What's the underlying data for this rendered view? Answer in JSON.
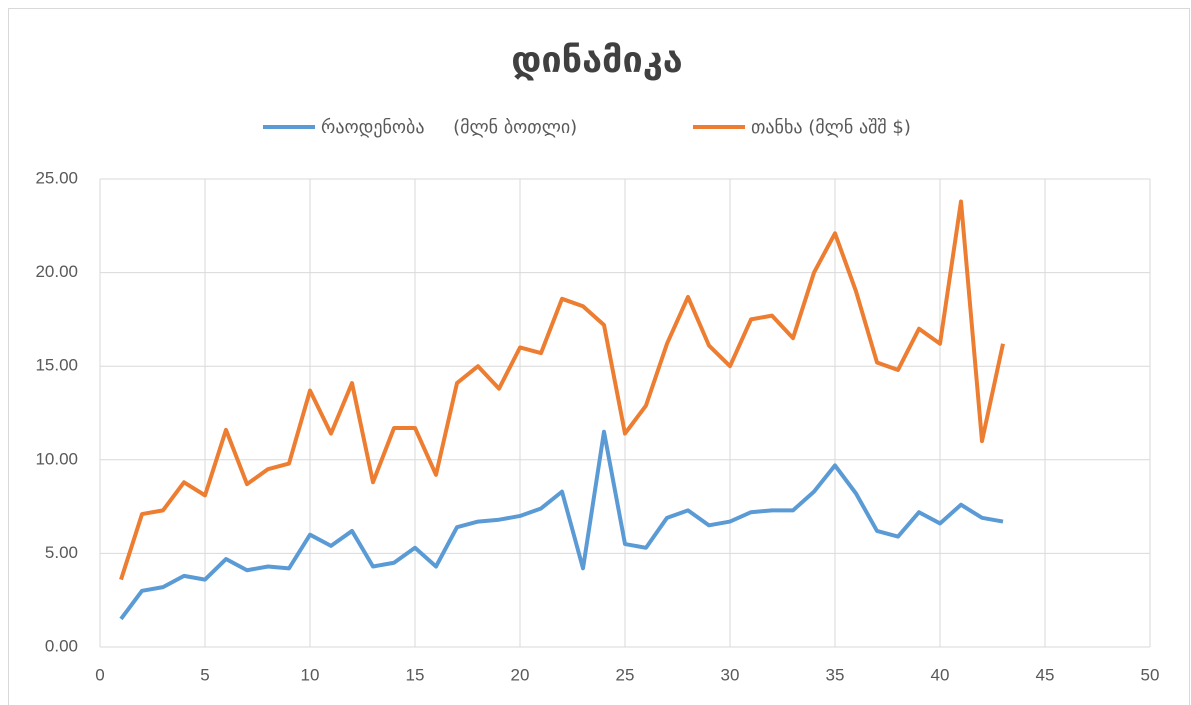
{
  "chart_data": {
    "type": "line",
    "title": "დინამიკა",
    "x": [
      1,
      2,
      3,
      4,
      5,
      6,
      7,
      8,
      9,
      10,
      11,
      12,
      13,
      14,
      15,
      16,
      17,
      18,
      19,
      20,
      21,
      22,
      23,
      24,
      25,
      26,
      27,
      28,
      29,
      30,
      31,
      32,
      33,
      34,
      35,
      36,
      37,
      38,
      39,
      40,
      41,
      42,
      43
    ],
    "series": [
      {
        "name": "რაოდენობა     (მლნ ბოთლი)",
        "color": "#5b9bd5",
        "values": [
          1.5,
          3.0,
          3.2,
          3.8,
          3.6,
          4.7,
          4.1,
          4.3,
          4.2,
          6.0,
          5.4,
          6.2,
          4.3,
          4.5,
          5.3,
          4.3,
          6.4,
          6.7,
          6.8,
          7.0,
          7.4,
          8.3,
          4.2,
          11.5,
          5.5,
          5.3,
          6.9,
          7.3,
          6.5,
          6.7,
          7.2,
          7.3,
          7.3,
          8.3,
          9.7,
          8.2,
          6.2,
          5.9,
          7.2,
          6.6,
          7.6,
          6.9,
          6.7
        ]
      },
      {
        "name": "თანხა (მლნ აშშ $)",
        "color": "#ed7d31",
        "values": [
          3.6,
          7.1,
          7.3,
          8.8,
          8.1,
          11.6,
          8.7,
          9.5,
          9.8,
          13.7,
          11.4,
          14.1,
          8.8,
          11.7,
          11.7,
          9.2,
          14.1,
          15.0,
          13.8,
          16.0,
          15.7,
          18.6,
          18.2,
          17.2,
          11.4,
          12.9,
          16.2,
          18.7,
          16.1,
          15.0,
          17.5,
          17.7,
          16.5,
          20.0,
          22.1,
          19.0,
          15.2,
          14.8,
          17.0,
          16.2,
          23.8,
          11.0,
          16.2
        ]
      }
    ],
    "xlim": [
      0,
      50
    ],
    "xticks": [
      0,
      5,
      10,
      15,
      20,
      25,
      30,
      35,
      40,
      45,
      50
    ],
    "ylim": [
      0,
      25
    ],
    "yticks": [
      {
        "value": 0,
        "label": "0.00"
      },
      {
        "value": 5,
        "label": "5.00"
      },
      {
        "value": 10,
        "label": "10.00"
      },
      {
        "value": 15,
        "label": "15.00"
      },
      {
        "value": 20,
        "label": "20.00"
      },
      {
        "value": 25,
        "label": "25.00"
      }
    ],
    "grid": true,
    "legend": "top"
  }
}
